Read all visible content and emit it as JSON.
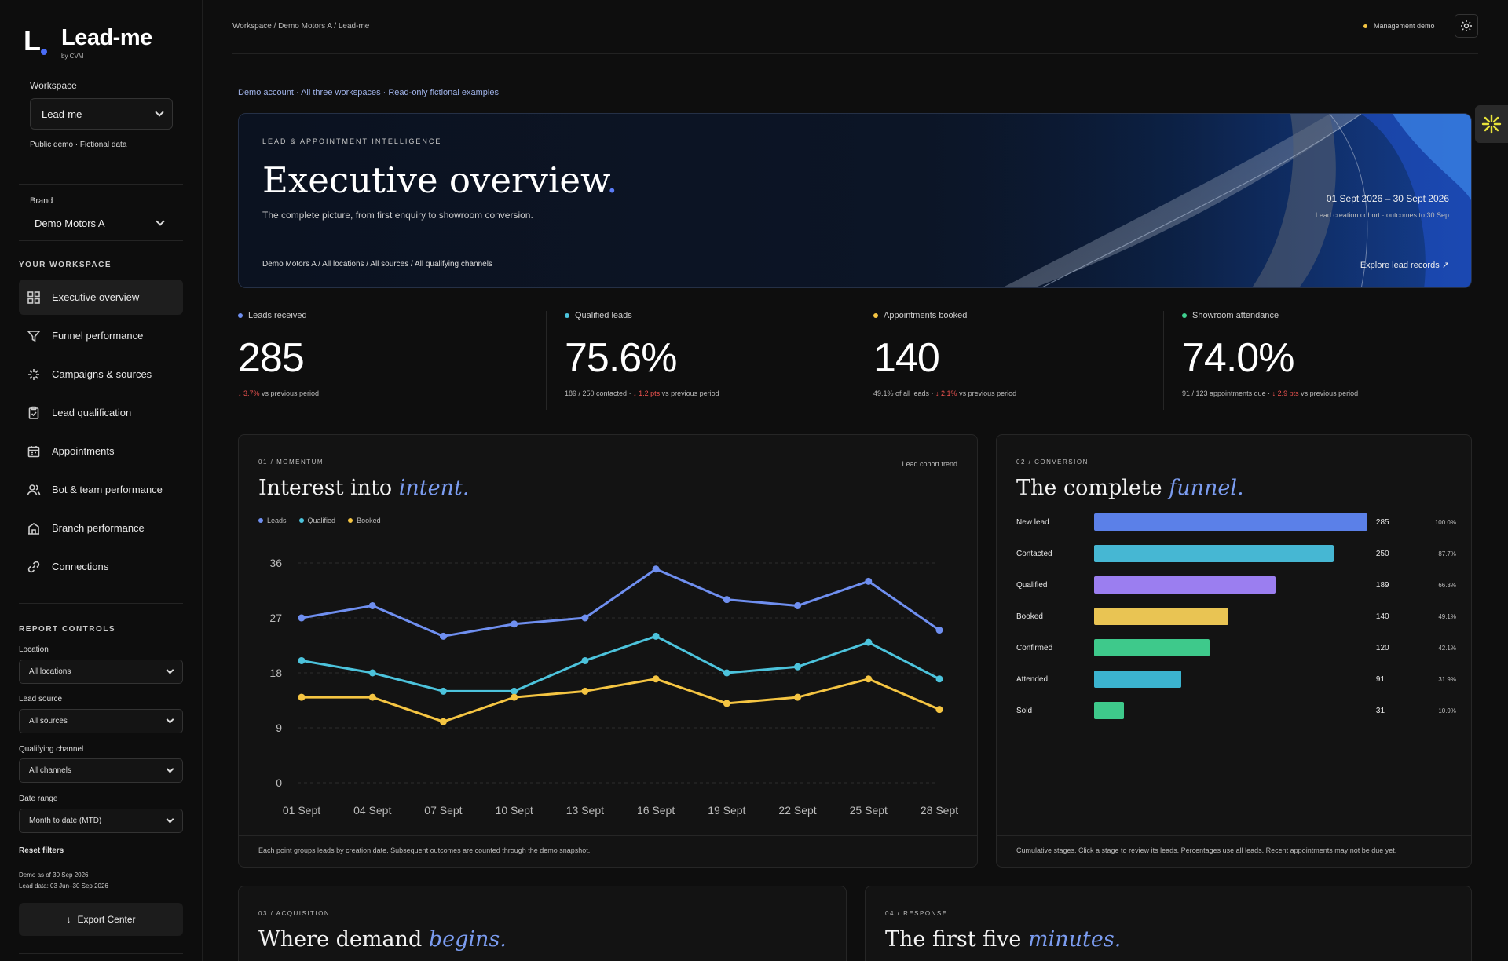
{
  "brand": {
    "mark": "L",
    "name": "Lead-me",
    "by": "by CVM"
  },
  "sidebar": {
    "workspace_label": "Workspace",
    "workspace_value": "Lead-me",
    "workspace_note": "Public demo · Fictional data",
    "brand_label": "Brand",
    "brand_value": "Demo Motors A",
    "section_title": "YOUR WORKSPACE",
    "nav": [
      {
        "label": "Executive overview",
        "icon": "grid-icon",
        "active": true
      },
      {
        "label": "Funnel performance",
        "icon": "funnel-icon"
      },
      {
        "label": "Campaigns & sources",
        "icon": "sparkle-icon"
      },
      {
        "label": "Lead qualification",
        "icon": "clipboard-icon"
      },
      {
        "label": "Appointments",
        "icon": "calendar-icon"
      },
      {
        "label": "Bot & team performance",
        "icon": "users-icon"
      },
      {
        "label": "Branch performance",
        "icon": "building-icon"
      },
      {
        "label": "Connections",
        "icon": "link-icon"
      }
    ],
    "controls_title": "REPORT CONTROLS",
    "controls": [
      {
        "label": "Location",
        "value": "All locations"
      },
      {
        "label": "Lead source",
        "value": "All sources"
      },
      {
        "label": "Qualifying channel",
        "value": "All channels"
      },
      {
        "label": "Date range",
        "value": "Month to date (MTD)"
      }
    ],
    "reset": "Reset filters",
    "demo_as_of": "Demo as of 30 Sep 2026",
    "lead_data": "Lead data: 03 Jun–30 Sep 2026",
    "export": "Export Center"
  },
  "topbar": {
    "breadcrumb": "Workspace / Demo Motors A / Lead-me",
    "mode": "Management demo"
  },
  "demo_line": "Demo account · All three workspaces · Read-only fictional examples",
  "hero": {
    "kicker": "LEAD & APPOINTMENT INTELLIGENCE",
    "title": "Executive overview",
    "title_dot": ".",
    "subtitle": "The complete picture, from first enquiry to showroom conversion.",
    "date_range": "01 Sept 2026 – 30 Sept 2026",
    "date_note": "Lead creation cohort · outcomes to 30 Sep",
    "filters": "Demo Motors A / All locations / All sources / All qualifying channels",
    "explore": "Explore lead records ↗"
  },
  "kpis": [
    {
      "label": "Leads received",
      "color": "#6f8ff0",
      "value": "285",
      "pre": "",
      "delta": "↓ 3.7%",
      "post": " vs previous period"
    },
    {
      "label": "Qualified leads",
      "color": "#4cc3dc",
      "value": "75.6%",
      "pre": "189 / 250 contacted · ",
      "delta": "↓ 1.2 pts",
      "post": " vs previous period"
    },
    {
      "label": "Appointments booked",
      "color": "#f5c542",
      "value": "140",
      "pre": "49.1% of all leads · ",
      "delta": "↓ 2.1%",
      "post": " vs previous period"
    },
    {
      "label": "Showroom attendance",
      "color": "#3fd08f",
      "value": "74.0%",
      "pre": "91 / 123 appointments due · ",
      "delta": "↓ 2.9 pts",
      "post": " vs previous period"
    }
  ],
  "momentum": {
    "kicker": "01 / MOMENTUM",
    "title_a": "Interest into ",
    "title_b": "intent.",
    "tag": "Lead cohort trend",
    "footnote": "Each point groups leads by creation date. Subsequent outcomes are counted through the demo snapshot."
  },
  "conversion": {
    "kicker": "02 / CONVERSION",
    "title_a": "The complete ",
    "title_b": "funnel.",
    "footnote": "Cumulative stages. Click a stage to review its leads. Percentages use all leads. Recent appointments may not be due yet."
  },
  "acquisition": {
    "kicker": "03 / ACQUISITION",
    "title_a": "Where demand ",
    "title_b": "begins."
  },
  "response": {
    "kicker": "04 / RESPONSE",
    "title_a": "The first five ",
    "title_b": "minutes."
  },
  "chart_data": [
    {
      "type": "line",
      "x": [
        "01 Sept",
        "04 Sept",
        "07 Sept",
        "10 Sept",
        "13 Sept",
        "16 Sept",
        "19 Sept",
        "22 Sept",
        "25 Sept",
        "28 Sept"
      ],
      "y_ticks": [
        0,
        9,
        18,
        27,
        36
      ],
      "ylim": [
        0,
        36
      ],
      "grid": true,
      "legend": "top-left",
      "series": [
        {
          "name": "Leads",
          "color": "#6f8ff0",
          "values": [
            27,
            29,
            24,
            26,
            27,
            35,
            30,
            29,
            33,
            25
          ]
        },
        {
          "name": "Qualified",
          "color": "#4cc3dc",
          "values": [
            20,
            18,
            15,
            15,
            20,
            24,
            18,
            19,
            23,
            17
          ]
        },
        {
          "name": "Booked",
          "color": "#f5c542",
          "values": [
            14,
            14,
            10,
            14,
            15,
            17,
            13,
            14,
            17,
            12
          ]
        }
      ]
    },
    {
      "type": "bar",
      "orientation": "horizontal",
      "categories": [
        "New lead",
        "Contacted",
        "Qualified",
        "Booked",
        "Confirmed",
        "Attended",
        "Sold"
      ],
      "values": [
        285,
        250,
        189,
        140,
        120,
        91,
        31
      ],
      "percent_labels": [
        "100.0%",
        "87.7%",
        "66.3%",
        "49.1%",
        "42.1%",
        "31.9%",
        "10.9%"
      ],
      "colors": [
        "#5b80e8",
        "#46b7d3",
        "#9b7ef0",
        "#e9c453",
        "#3ec98b",
        "#3bb3cf",
        "#3ec98b"
      ],
      "xlim": [
        0,
        285
      ]
    }
  ]
}
